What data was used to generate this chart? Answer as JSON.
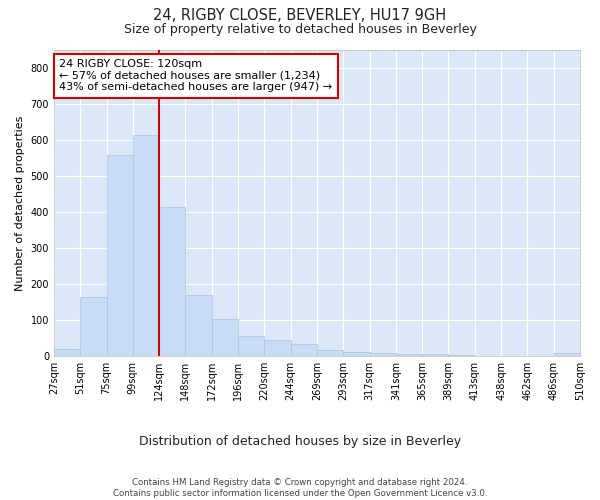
{
  "title1": "24, RIGBY CLOSE, BEVERLEY, HU17 9GH",
  "title2": "Size of property relative to detached houses in Beverley",
  "xlabel": "Distribution of detached houses by size in Beverley",
  "ylabel": "Number of detached properties",
  "bar_values": [
    20,
    163,
    558,
    615,
    413,
    169,
    103,
    55,
    43,
    32,
    15,
    10,
    8,
    5,
    5,
    1,
    0,
    0,
    0,
    7
  ],
  "bar_labels": [
    "27sqm",
    "51sqm",
    "75sqm",
    "99sqm",
    "124sqm",
    "148sqm",
    "172sqm",
    "196sqm",
    "220sqm",
    "244sqm",
    "269sqm",
    "293sqm",
    "317sqm",
    "341sqm",
    "365sqm",
    "389sqm",
    "413sqm",
    "438sqm",
    "462sqm",
    "486sqm",
    "510sqm"
  ],
  "bar_color": "#c9dcf5",
  "bar_edge_color": "#a8c4e0",
  "vline_x": 3.5,
  "vline_color": "#cc0000",
  "annotation_text": "24 RIGBY CLOSE: 120sqm\n← 57% of detached houses are smaller (1,234)\n43% of semi-detached houses are larger (947) →",
  "annotation_box_color": "#ffffff",
  "annotation_box_edge": "#cc0000",
  "ylim": [
    0,
    850
  ],
  "yticks": [
    0,
    100,
    200,
    300,
    400,
    500,
    600,
    700,
    800
  ],
  "footnote": "Contains HM Land Registry data © Crown copyright and database right 2024.\nContains public sector information licensed under the Open Government Licence v3.0.",
  "fig_bg_color": "#ffffff",
  "plot_bg_color": "#dce8f8"
}
